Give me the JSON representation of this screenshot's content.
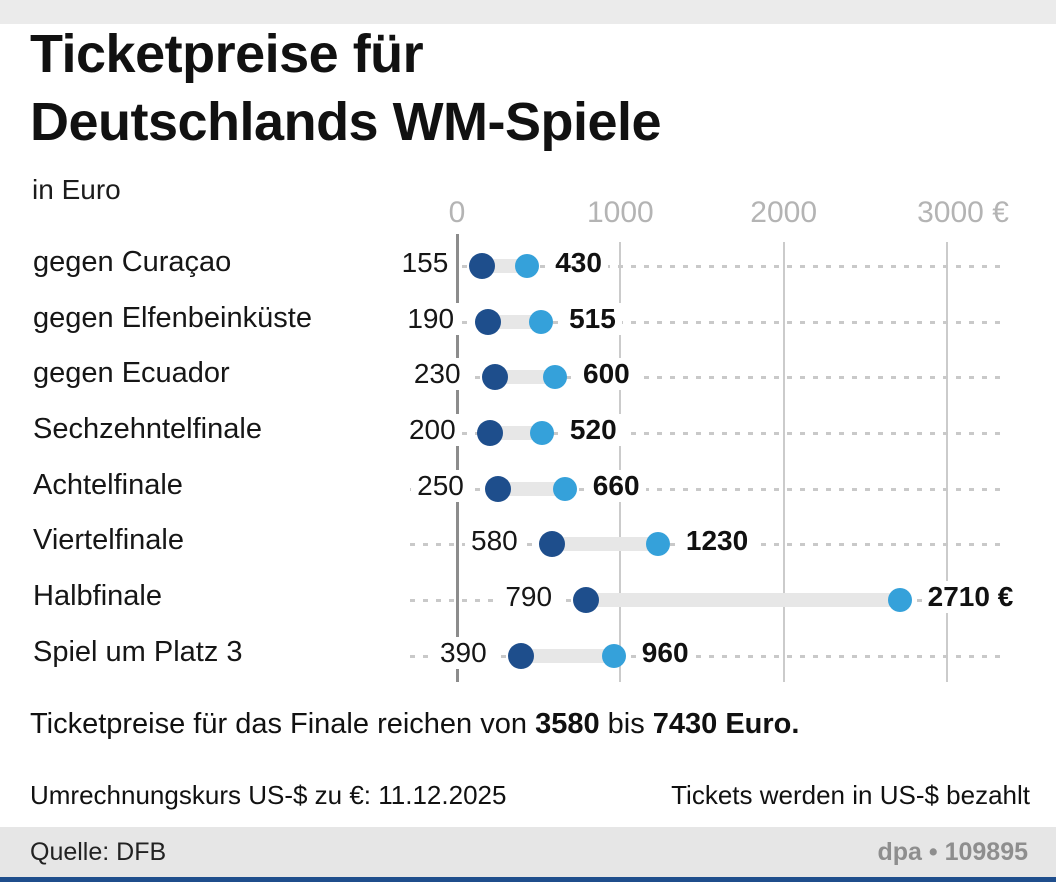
{
  "page": {
    "title_lines": [
      "Ticketpreise für",
      "Deutschlands WM-Spiele"
    ],
    "subtitle": "in Euro",
    "note": {
      "pre": "Ticketpreise für das Finale reichen von ",
      "min": "3580",
      "mid": " bis ",
      "max": "7430 Euro."
    },
    "exchange_left": "Umrechnungskurs US-$ zu €: 11.12.2025",
    "exchange_right": "Tickets werden in US-$ bezahlt",
    "source": "Quelle: DFB",
    "credit": "dpa • 109895"
  },
  "colors": {
    "min_dot": "#1e4e8c",
    "max_dot": "#35a1da",
    "accent_bar": "#1f4e8c",
    "grid": "#cbcbcb",
    "axis": "#8c8c8c",
    "tick_label": "#b4b4b4",
    "connector": "#e7e7e7",
    "row_line": "#c9c9c9",
    "footer_bg": "#e6e6e6",
    "top_strip": "#ebebeb"
  },
  "chart_data": {
    "type": "dumbbell",
    "title": "Ticketpreise für Deutschlands WM-Spiele",
    "unit": "in Euro",
    "categories": [
      "gegen Curaçao",
      "gegen Elfenbeinküste",
      "gegen Ecuador",
      "Sechzehntelfinale",
      "Achtelfinale",
      "Viertelfinale",
      "Halbfinale",
      "Spiel um Platz 3"
    ],
    "series": [
      {
        "name": "min_price_eur",
        "values": [
          155,
          190,
          230,
          200,
          250,
          580,
          790,
          390
        ],
        "labels": [
          "155",
          "190",
          "230",
          "200",
          "250",
          "580",
          "790",
          "390"
        ]
      },
      {
        "name": "max_price_eur",
        "values": [
          430,
          515,
          600,
          520,
          660,
          1230,
          2710,
          960
        ],
        "labels": [
          "430",
          "515",
          "600",
          "520",
          "660",
          "1230",
          "2710 €",
          "960"
        ]
      }
    ],
    "x_ticks": [
      {
        "value": 0,
        "label": "0"
      },
      {
        "value": 1000,
        "label": "1000"
      },
      {
        "value": 2000,
        "label": "2000"
      },
      {
        "value": 3000,
        "label": "3000 €"
      }
    ],
    "xlim": [
      0,
      3370
    ],
    "grid": true,
    "legend": false
  }
}
